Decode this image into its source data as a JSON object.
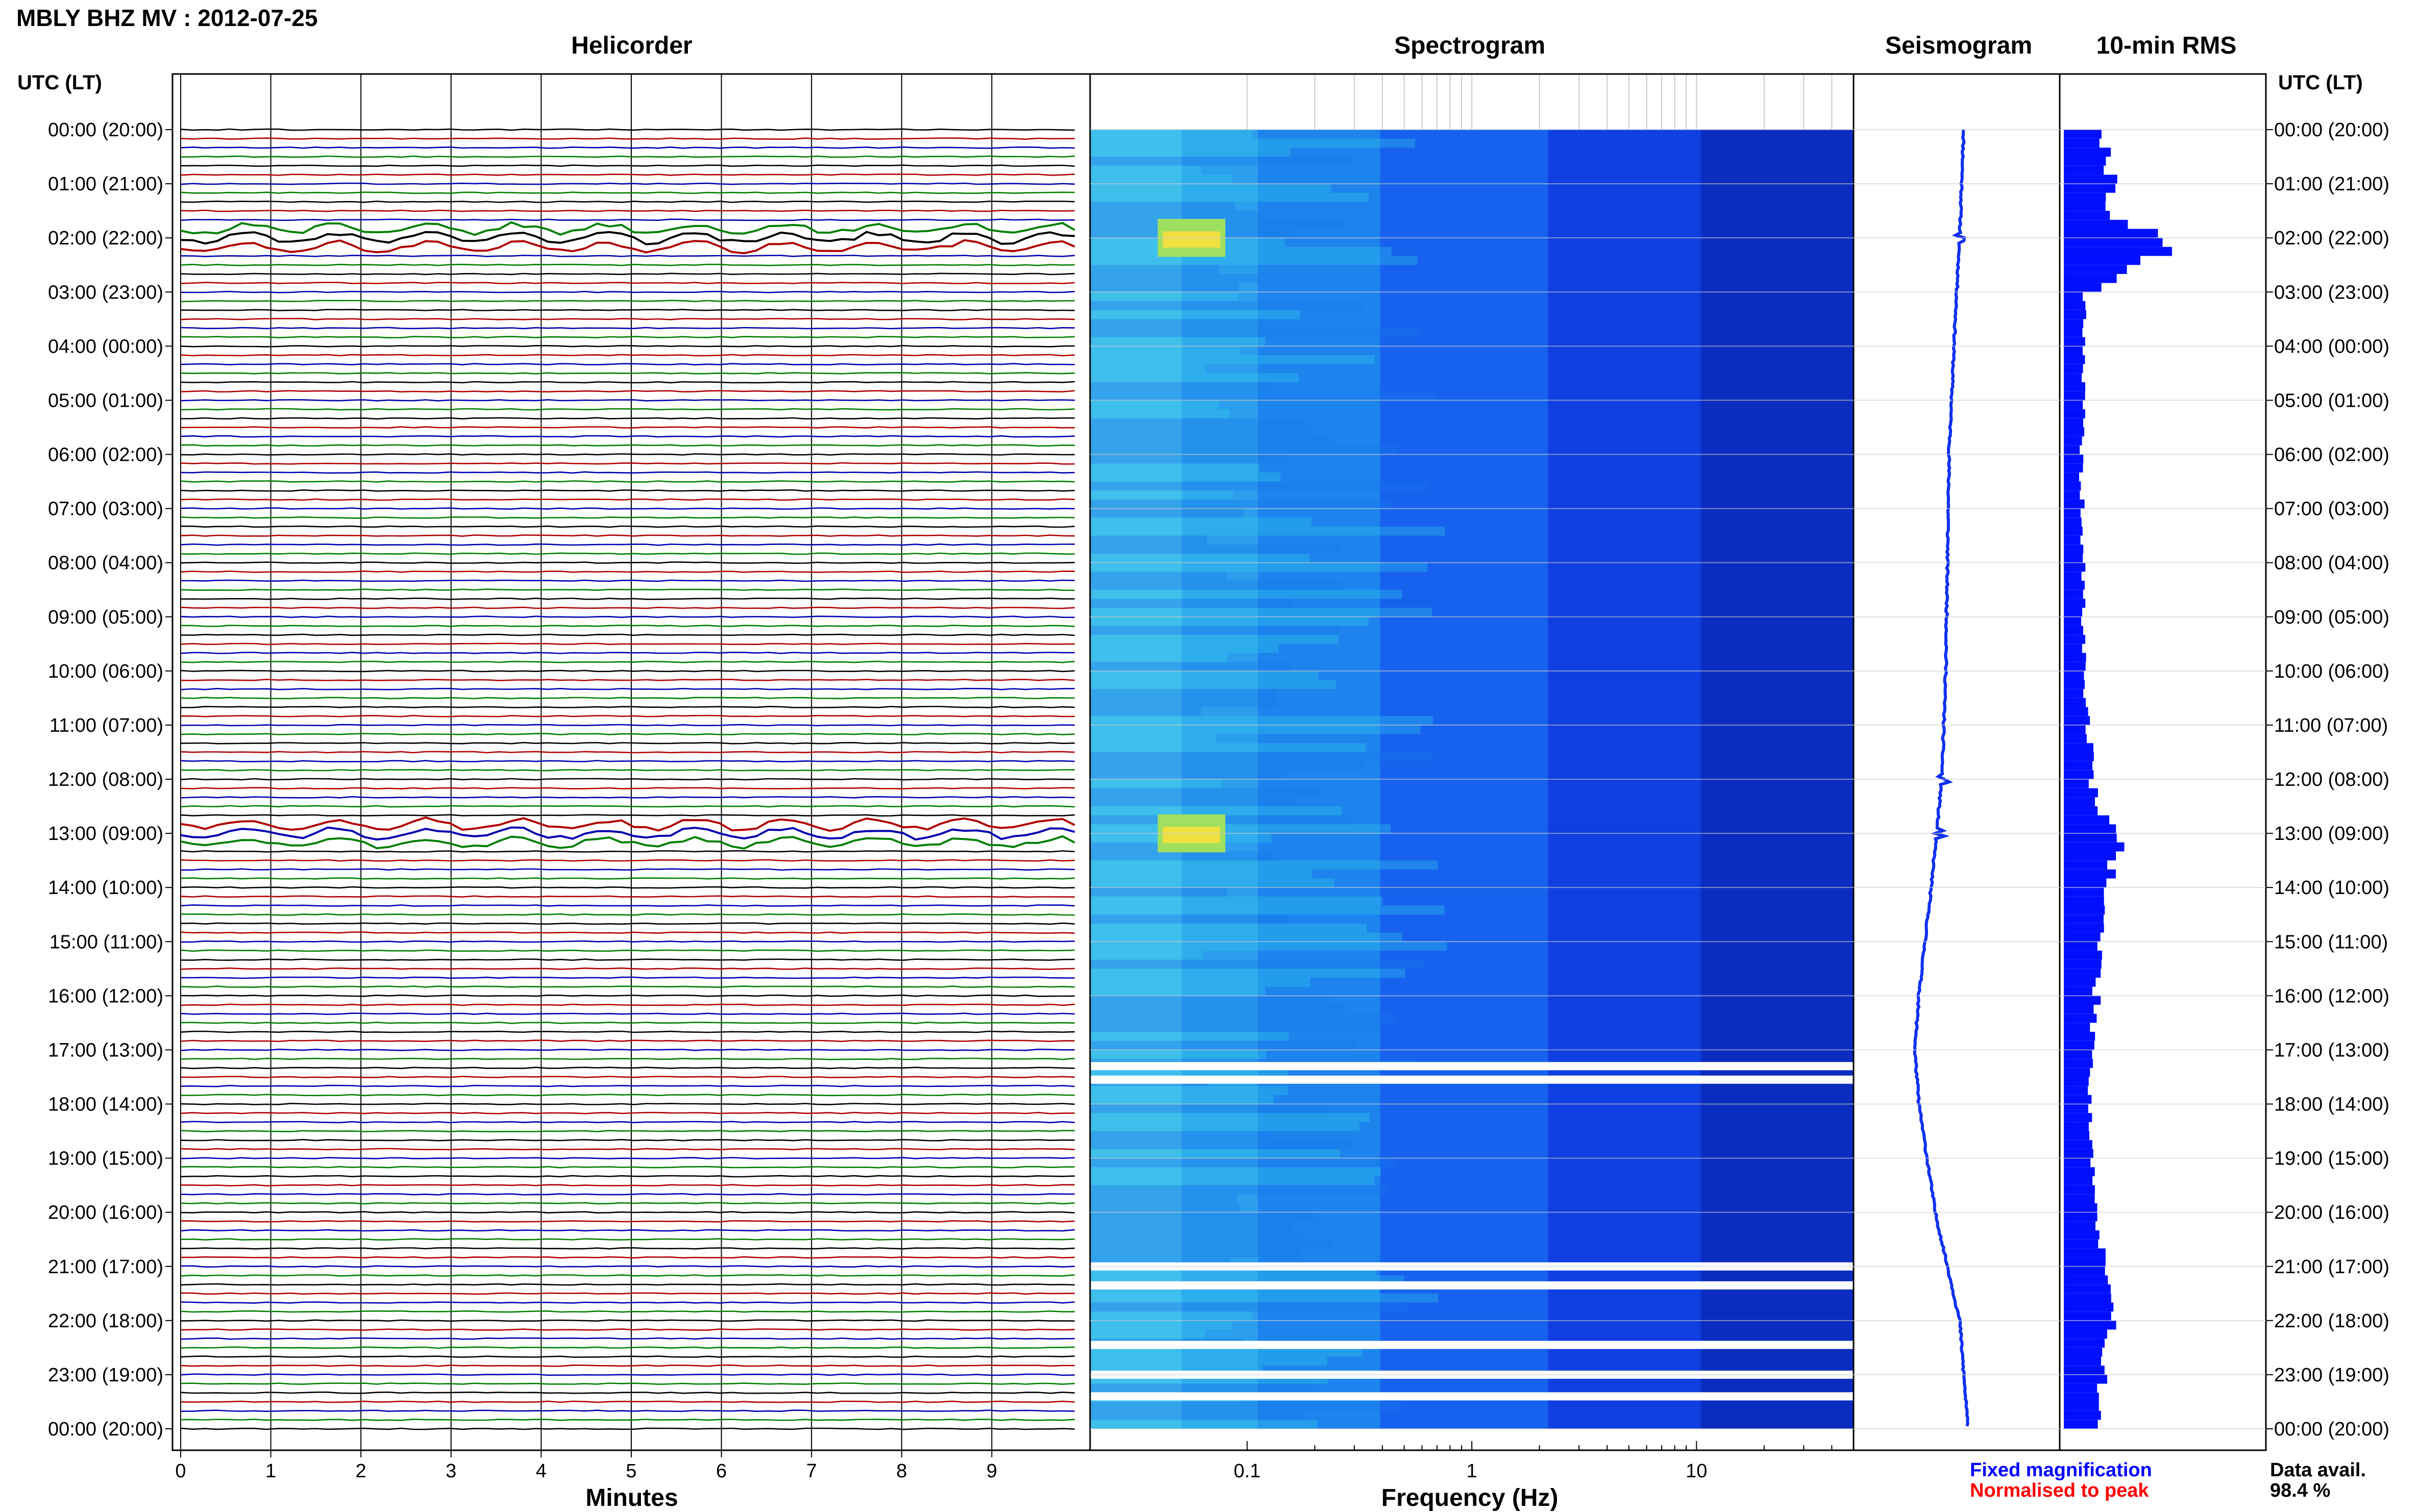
{
  "title": "MBLY BHZ MV : 2012-07-25",
  "panels": {
    "helicorder": "Helicorder",
    "spectrogram": "Spectrogram",
    "seismogram": "Seismogram",
    "rms": "10-min RMS"
  },
  "time_header": "UTC (LT)",
  "legend": {
    "fixed": "Fixed magnification",
    "normalised": "Normalised to peak",
    "fixed_color": "#0000ff",
    "normalised_color": "#ff0000"
  },
  "data_availability": {
    "label": "Data avail.",
    "value": "98.4 %"
  },
  "colors": {
    "trace_cycle": [
      "#000000",
      "#b00000",
      "#0000b0",
      "#008000"
    ],
    "seismogram": "#1030f0",
    "rms": "#0010ff"
  },
  "chart_data": [
    {
      "type": "line",
      "title": "Helicorder",
      "xlabel": "Minutes",
      "x_ticks": [
        0,
        1,
        2,
        3,
        4,
        5,
        6,
        7,
        8,
        9
      ],
      "xlim": [
        0,
        10
      ],
      "rows_per_hour": 6,
      "y_tick_labels": [
        "00:00 (20:00)",
        "01:00 (21:00)",
        "02:00 (22:00)",
        "03:00 (23:00)",
        "04:00 (00:00)",
        "05:00 (01:00)",
        "06:00 (02:00)",
        "07:00 (03:00)",
        "08:00 (04:00)",
        "09:00 (05:00)",
        "10:00 (06:00)",
        "11:00 (07:00)",
        "12:00 (08:00)",
        "13:00 (09:00)",
        "14:00 (10:00)",
        "15:00 (11:00)",
        "16:00 (12:00)",
        "17:00 (13:00)",
        "18:00 (14:00)",
        "19:00 (15:00)",
        "20:00 (16:00)",
        "21:00 (17:00)",
        "22:00 (18:00)",
        "23:00 (19:00)",
        "00:00 (20:00)"
      ]
    },
    {
      "type": "heatmap",
      "title": "Spectrogram",
      "xlabel": "Frequency (Hz)",
      "x_scale": "log",
      "xlim": [
        0.02,
        50
      ],
      "x_tick_labels": [
        "0.1",
        "1",
        "10"
      ],
      "ylim_hours": [
        0,
        24
      ],
      "high_energy_events": [
        {
          "hour": 2.0,
          "freq_hz": [
            0.04,
            0.08
          ]
        },
        {
          "hour": 13.0,
          "freq_hz": [
            0.04,
            0.08
          ]
        }
      ],
      "data_gaps_hours": [
        17.3,
        17.55,
        21.0,
        21.35,
        22.45,
        23.0,
        23.4
      ]
    },
    {
      "type": "line",
      "title": "Seismogram",
      "long_period_drift": [
        [
          0,
          0.6
        ],
        [
          2,
          0.55
        ],
        [
          4,
          0.48
        ],
        [
          6,
          0.42
        ],
        [
          8,
          0.4
        ],
        [
          10,
          0.38
        ],
        [
          12,
          0.33
        ],
        [
          14,
          0.2
        ],
        [
          16,
          0.05
        ],
        [
          17,
          0.0
        ],
        [
          18,
          0.05
        ],
        [
          20,
          0.25
        ],
        [
          22,
          0.55
        ],
        [
          24,
          0.65
        ]
      ],
      "spikes_hours": [
        2.0,
        12.0,
        13.0
      ]
    },
    {
      "type": "bar",
      "title": "10-min RMS",
      "x_hours": [
        0,
        0.5,
        1.0,
        1.5,
        2.0,
        2.5,
        3.0,
        6.0,
        10.0,
        12.0,
        12.5,
        13.0,
        13.5,
        14.0,
        16.0,
        18.0,
        20.0,
        21.0,
        22.0,
        23.0,
        24.0
      ],
      "values": [
        0.28,
        0.3,
        0.35,
        0.3,
        0.75,
        0.45,
        0.15,
        0.12,
        0.14,
        0.2,
        0.22,
        0.42,
        0.35,
        0.28,
        0.22,
        0.18,
        0.22,
        0.28,
        0.32,
        0.28,
        0.2
      ]
    }
  ]
}
